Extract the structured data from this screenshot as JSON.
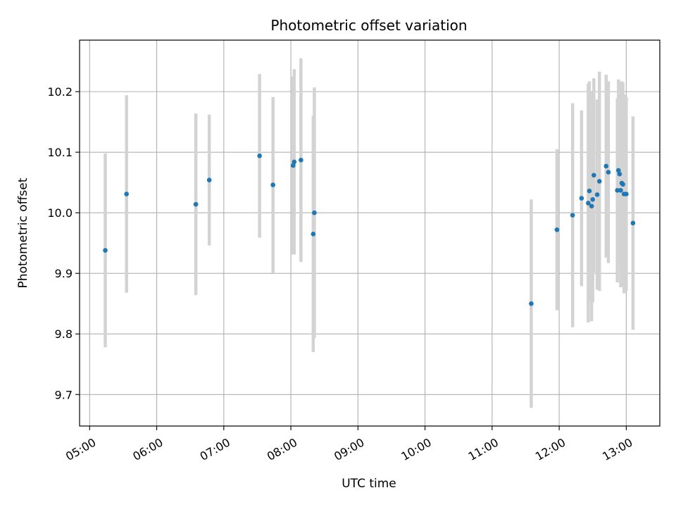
{
  "chart_data": {
    "type": "scatter",
    "title": "Photometric offset variation",
    "xlabel": "UTC time",
    "ylabel": "Photometric offset",
    "x_axis_type": "time",
    "xlim": [
      "04:51",
      "13:30"
    ],
    "ylim": [
      9.648,
      10.285
    ],
    "x_ticks": [
      "05:00",
      "06:00",
      "07:00",
      "08:00",
      "09:00",
      "10:00",
      "11:00",
      "12:00",
      "13:00"
    ],
    "y_ticks": [
      "9.7",
      "9.8",
      "9.9",
      "10.0",
      "10.1",
      "10.2"
    ],
    "grid": true,
    "legend": "none",
    "colors": {
      "point": "#1f77b4",
      "errorbar": "#d3d3d3",
      "grid": "#b0b0b0",
      "axis": "#000000"
    },
    "series": [
      {
        "points": [
          {
            "t": "05:14",
            "y": 9.938,
            "yerr": 0.16
          },
          {
            "t": "05:33",
            "y": 10.031,
            "yerr": 0.163
          },
          {
            "t": "06:35",
            "y": 10.014,
            "yerr": 0.15
          },
          {
            "t": "06:47",
            "y": 10.054,
            "yerr": 0.108
          },
          {
            "t": "07:32",
            "y": 10.094,
            "yerr": 0.135
          },
          {
            "t": "07:44",
            "y": 10.046,
            "yerr": 0.145
          },
          {
            "t": "08:02",
            "y": 10.078,
            "yerr": 0.147
          },
          {
            "t": "08:03",
            "y": 10.084,
            "yerr": 0.153
          },
          {
            "t": "08:09",
            "y": 10.087,
            "yerr": 0.168
          },
          {
            "t": "08:20",
            "y": 9.965,
            "yerr": 0.195
          },
          {
            "t": "08:21",
            "y": 10.0,
            "yerr": 0.207
          },
          {
            "t": "11:35",
            "y": 9.85,
            "yerr": 0.172
          },
          {
            "t": "11:58",
            "y": 9.972,
            "yerr": 0.133
          },
          {
            "t": "12:12",
            "y": 9.996,
            "yerr": 0.185
          },
          {
            "t": "12:20",
            "y": 10.024,
            "yerr": 0.145
          },
          {
            "t": "12:26",
            "y": 10.016,
            "yerr": 0.197
          },
          {
            "t": "12:27",
            "y": 10.036,
            "yerr": 0.181
          },
          {
            "t": "12:29",
            "y": 10.011,
            "yerr": 0.19
          },
          {
            "t": "12:30",
            "y": 10.022,
            "yerr": 0.17
          },
          {
            "t": "12:31",
            "y": 10.062,
            "yerr": 0.16
          },
          {
            "t": "12:34",
            "y": 10.03,
            "yerr": 0.157
          },
          {
            "t": "12:36",
            "y": 10.052,
            "yerr": 0.181
          },
          {
            "t": "12:42",
            "y": 10.077,
            "yerr": 0.151
          },
          {
            "t": "12:44",
            "y": 10.067,
            "yerr": 0.15
          },
          {
            "t": "12:52",
            "y": 10.037,
            "yerr": 0.152
          },
          {
            "t": "12:53",
            "y": 10.07,
            "yerr": 0.15
          },
          {
            "t": "12:54",
            "y": 10.064,
            "yerr": 0.151
          },
          {
            "t": "12:55",
            "y": 10.037,
            "yerr": 0.16
          },
          {
            "t": "12:56",
            "y": 10.049,
            "yerr": 0.168
          },
          {
            "t": "12:57",
            "y": 10.047,
            "yerr": 0.168
          },
          {
            "t": "12:58",
            "y": 10.031,
            "yerr": 0.164
          },
          {
            "t": "13:00",
            "y": 10.031,
            "yerr": 0.16
          },
          {
            "t": "13:06",
            "y": 9.983,
            "yerr": 0.176
          }
        ]
      }
    ]
  }
}
